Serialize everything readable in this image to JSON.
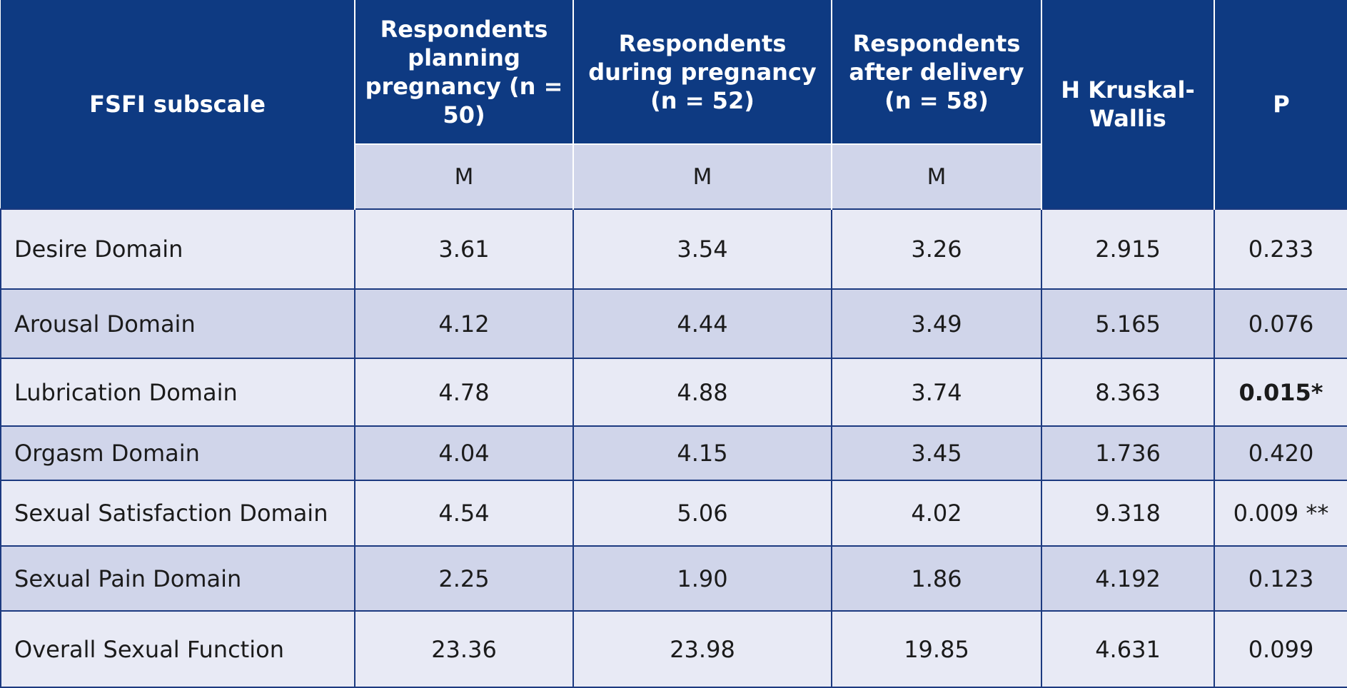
{
  "header": {
    "subscale": "FSFI subscale",
    "group_planning": "Respondents planning pregnancy (n = 50)",
    "group_during": "Respondents during pregnancy (n = 52)",
    "group_after": "Respondents after delivery (n = 58)",
    "h_kruskal": "H Kruskal-Wallis",
    "p": "P",
    "sub_m1": "M",
    "sub_m2": "M",
    "sub_m3": "M"
  },
  "rows": [
    {
      "label": "Desire Domain",
      "planning": "3.61",
      "during": "3.54",
      "after": "3.26",
      "h": "2.915",
      "p": "0.233"
    },
    {
      "label": "Arousal Domain",
      "planning": "4.12",
      "during": "4.44",
      "after": "3.49",
      "h": "5.165",
      "p": "0.076"
    },
    {
      "label": "Lubrication Domain",
      "planning": "4.78",
      "during": "4.88",
      "after": "3.74",
      "h": "8.363",
      "p": "0.015*"
    },
    {
      "label": "Orgasm Domain",
      "planning": "4.04",
      "during": "4.15",
      "after": "3.45",
      "h": "1.736",
      "p": "0.420"
    },
    {
      "label": "Sexual Satisfaction Domain",
      "planning": "4.54",
      "during": "5.06",
      "after": "4.02",
      "h": "9.318",
      "p": "0.009 **"
    },
    {
      "label": "Sexual Pain Domain",
      "planning": "2.25",
      "during": "1.90",
      "after": "1.86",
      "h": "4.192",
      "p": "0.123"
    },
    {
      "label": "Overall Sexual Function",
      "planning": "23.36",
      "during": "23.98",
      "after": "19.85",
      "h": "4.631",
      "p": "0.099"
    }
  ],
  "colors": {
    "header_bg": "#0e3a82",
    "subheader_bg": "#d0d5ea",
    "row_light": "#e8eaf5",
    "row_dark": "#d0d5ea",
    "border": "#1c3a80"
  }
}
